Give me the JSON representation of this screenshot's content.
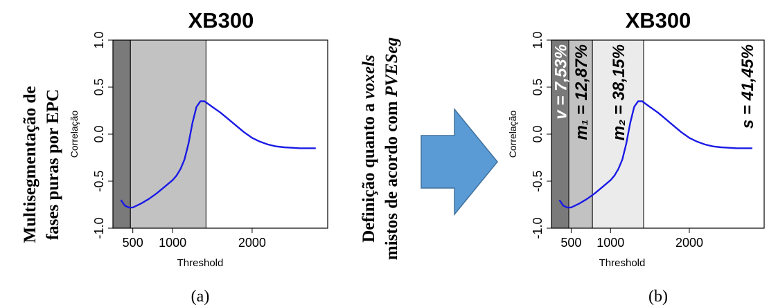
{
  "left_caption": {
    "line1": "Multisegmentação de",
    "line2": "fases puras por EPC"
  },
  "middle_caption": {
    "line1_prefix": "Definição quanto a ",
    "line1_italic": "voxels",
    "line2_prefix": "mistos de acordo com ",
    "line2_italic": "PVESeg"
  },
  "arrow_color": "#5B9BD5",
  "chart_data": [
    {
      "panel_label": "(a)",
      "type": "line",
      "title": "XB300",
      "xlabel": "Threshold",
      "ylabel": "Correlação",
      "xlim": [
        250,
        2950
      ],
      "ylim": [
        -1.0,
        1.0
      ],
      "xticks": [
        500,
        1000,
        2000
      ],
      "xtick_labels": [
        "500",
        "1000",
        "2000"
      ],
      "yticks": [
        1.0,
        0.5,
        0.0,
        -0.5,
        -1.0
      ],
      "ytick_labels": [
        "1.0",
        "0.5",
        "0.0",
        "-0.5",
        "-1.0"
      ],
      "regions": [
        {
          "from": 250,
          "to": 470,
          "color": "#7a7a7a",
          "label": ""
        },
        {
          "from": 470,
          "to": 1420,
          "color": "#c2c2c2",
          "label": ""
        }
      ],
      "series": [
        {
          "color": "#1a1ae6",
          "x": [
            350,
            400,
            450,
            500,
            600,
            700,
            800,
            900,
            1000,
            1050,
            1100,
            1150,
            1200,
            1250,
            1300,
            1350,
            1400,
            1450,
            1500,
            1600,
            1700,
            1800,
            1900,
            2000,
            2100,
            2200,
            2300,
            2400,
            2500,
            2600,
            2700,
            2800
          ],
          "y": [
            -0.7,
            -0.76,
            -0.78,
            -0.78,
            -0.74,
            -0.69,
            -0.63,
            -0.56,
            -0.49,
            -0.44,
            -0.37,
            -0.27,
            -0.1,
            0.12,
            0.29,
            0.35,
            0.35,
            0.32,
            0.29,
            0.23,
            0.16,
            0.09,
            0.02,
            -0.04,
            -0.08,
            -0.11,
            -0.13,
            -0.14,
            -0.145,
            -0.15,
            -0.15,
            -0.15
          ]
        }
      ]
    },
    {
      "panel_label": "(b)",
      "type": "line",
      "title": "XB300",
      "xlabel": "Threshold",
      "ylabel": "Correlação",
      "xlim": [
        250,
        2950
      ],
      "ylim": [
        -1.0,
        1.0
      ],
      "xticks": [
        500,
        1000,
        2000
      ],
      "xtick_labels": [
        "500",
        "1000",
        "2000"
      ],
      "yticks": [
        1.0,
        0.5,
        0.0,
        -0.5,
        -1.0
      ],
      "ytick_labels": [
        "1.0",
        "0.5",
        "0.0",
        "-0.5",
        "-1.0"
      ],
      "regions": [
        {
          "from": 250,
          "to": 470,
          "color": "#7a7a7a",
          "label": "v = 7,53%",
          "label_color": "#ffffff"
        },
        {
          "from": 470,
          "to": 770,
          "color": "#c2c2c2",
          "label": "m₁ = 12,87%",
          "label_color": "#000000"
        },
        {
          "from": 770,
          "to": 1420,
          "color": "#ebebeb",
          "label": "m₂ = 38,15%",
          "label_color": "#000000"
        },
        {
          "from": 1420,
          "to": 2950,
          "color": "#ffffff",
          "label": "s = 41,45%",
          "label_color": "#000000"
        }
      ],
      "series": [
        {
          "color": "#1a1ae6",
          "x": [
            350,
            400,
            450,
            500,
            600,
            700,
            800,
            900,
            1000,
            1050,
            1100,
            1150,
            1200,
            1250,
            1300,
            1350,
            1400,
            1450,
            1500,
            1600,
            1700,
            1800,
            1900,
            2000,
            2100,
            2200,
            2300,
            2400,
            2500,
            2600,
            2700,
            2800
          ],
          "y": [
            -0.7,
            -0.76,
            -0.78,
            -0.78,
            -0.74,
            -0.69,
            -0.63,
            -0.56,
            -0.49,
            -0.44,
            -0.37,
            -0.27,
            -0.1,
            0.12,
            0.29,
            0.35,
            0.35,
            0.32,
            0.29,
            0.23,
            0.16,
            0.09,
            0.02,
            -0.04,
            -0.08,
            -0.11,
            -0.13,
            -0.14,
            -0.145,
            -0.15,
            -0.15,
            -0.15
          ]
        }
      ]
    }
  ]
}
